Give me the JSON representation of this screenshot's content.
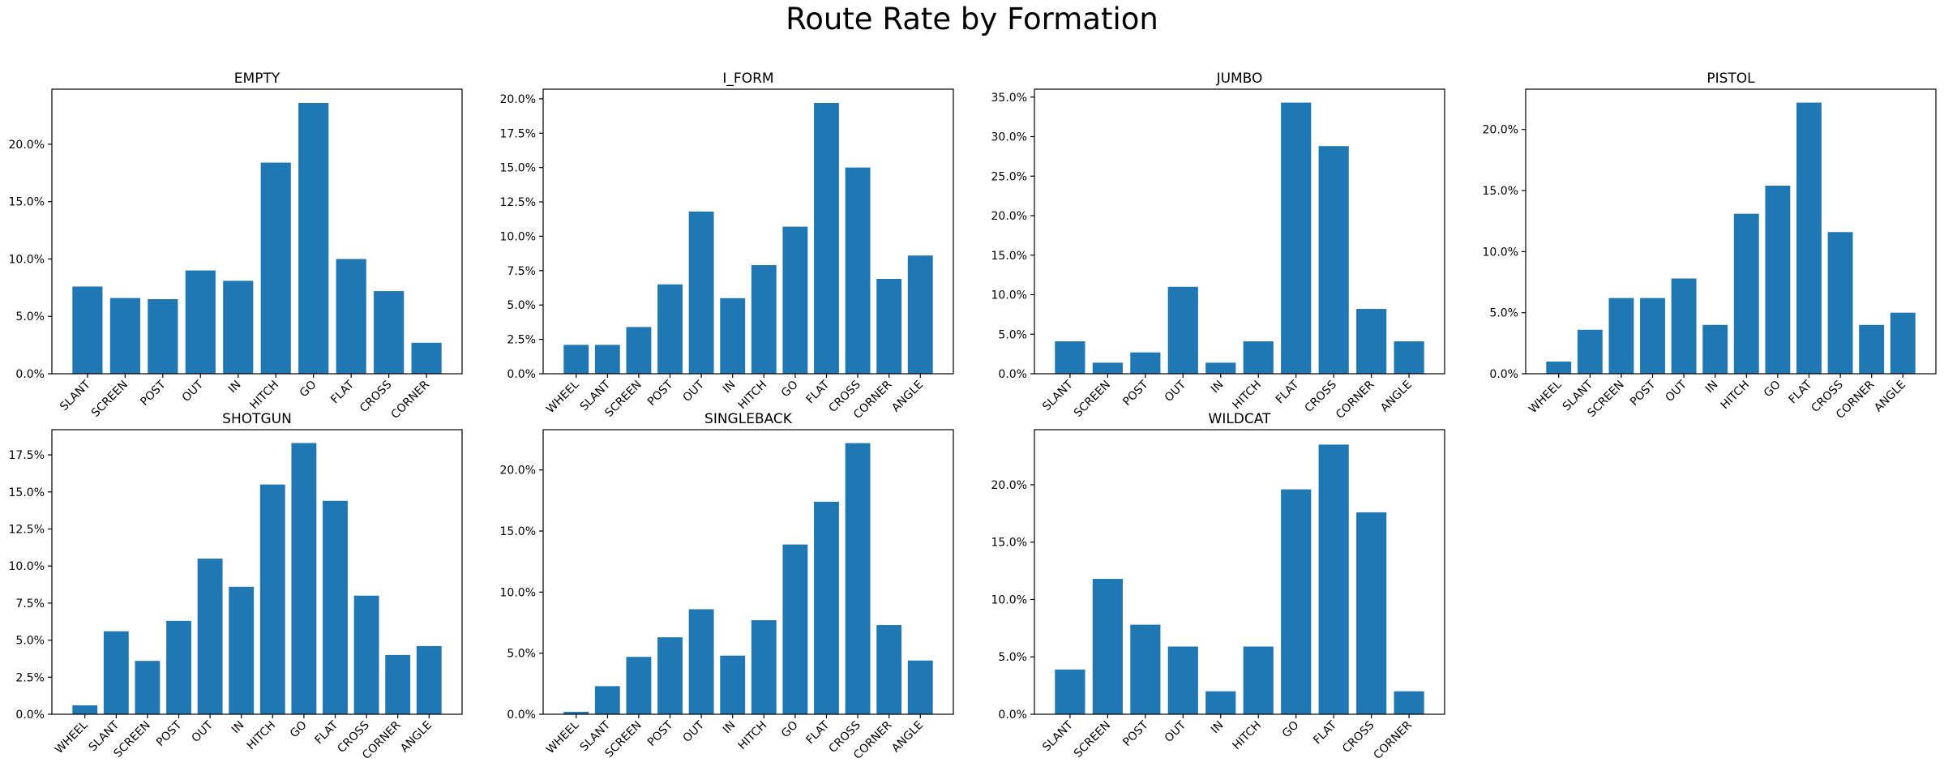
{
  "figure": {
    "title": "Route Rate by Formation"
  },
  "style": {
    "bar_color": "#1f77b4",
    "axis_color": "#000000",
    "background": "#ffffff"
  },
  "chart_data": [
    {
      "type": "bar",
      "title": "EMPTY",
      "ylim": [
        0,
        0.248
      ],
      "yticks": [
        0,
        0.05,
        0.1,
        0.15,
        0.2
      ],
      "ytick_labels": [
        "0.0%",
        "5.0%",
        "10.0%",
        "15.0%",
        "20.0%"
      ],
      "categories": [
        "SLANT",
        "SCREEN",
        "POST",
        "OUT",
        "IN",
        "HITCH",
        "GO",
        "FLAT",
        "CROSS",
        "CORNER"
      ],
      "values": [
        0.076,
        0.066,
        0.065,
        0.09,
        0.081,
        0.184,
        0.236,
        0.1,
        0.072,
        0.027
      ]
    },
    {
      "type": "bar",
      "title": "I_FORM",
      "ylim": [
        0,
        0.207
      ],
      "yticks": [
        0,
        0.025,
        0.05,
        0.075,
        0.1,
        0.125,
        0.15,
        0.175,
        0.2
      ],
      "ytick_labels": [
        "0.0%",
        "2.5%",
        "5.0%",
        "7.5%",
        "10.0%",
        "12.5%",
        "15.0%",
        "17.5%",
        "20.0%"
      ],
      "categories": [
        "WHEEL",
        "SLANT",
        "SCREEN",
        "POST",
        "OUT",
        "IN",
        "HITCH",
        "GO",
        "FLAT",
        "CROSS",
        "CORNER",
        "ANGLE"
      ],
      "values": [
        0.021,
        0.021,
        0.034,
        0.065,
        0.118,
        0.055,
        0.079,
        0.107,
        0.197,
        0.15,
        0.069,
        0.086
      ]
    },
    {
      "type": "bar",
      "title": "JUMBO",
      "ylim": [
        0,
        0.36
      ],
      "yticks": [
        0,
        0.05,
        0.1,
        0.15,
        0.2,
        0.25,
        0.3,
        0.35
      ],
      "ytick_labels": [
        "0.0%",
        "5.0%",
        "10.0%",
        "15.0%",
        "20.0%",
        "25.0%",
        "30.0%",
        "35.0%"
      ],
      "categories": [
        "SLANT",
        "SCREEN",
        "POST",
        "OUT",
        "IN",
        "HITCH",
        "FLAT",
        "CROSS",
        "CORNER",
        "ANGLE"
      ],
      "values": [
        0.041,
        0.014,
        0.027,
        0.11,
        0.014,
        0.041,
        0.343,
        0.288,
        0.082,
        0.041
      ]
    },
    {
      "type": "bar",
      "title": "PISTOL",
      "ylim": [
        0,
        0.233
      ],
      "yticks": [
        0,
        0.05,
        0.1,
        0.15,
        0.2
      ],
      "ytick_labels": [
        "0.0%",
        "5.0%",
        "10.0%",
        "15.0%",
        "20.0%"
      ],
      "categories": [
        "WHEEL",
        "SLANT",
        "SCREEN",
        "POST",
        "OUT",
        "IN",
        "HITCH",
        "GO",
        "FLAT",
        "CROSS",
        "CORNER",
        "ANGLE"
      ],
      "values": [
        0.01,
        0.036,
        0.062,
        0.062,
        0.078,
        0.04,
        0.131,
        0.154,
        0.222,
        0.116,
        0.04,
        0.05
      ]
    },
    {
      "type": "bar",
      "title": "SHOTGUN",
      "ylim": [
        0,
        0.192
      ],
      "yticks": [
        0,
        0.025,
        0.05,
        0.075,
        0.1,
        0.125,
        0.15,
        0.175
      ],
      "ytick_labels": [
        "0.0%",
        "2.5%",
        "5.0%",
        "7.5%",
        "10.0%",
        "12.5%",
        "15.0%",
        "17.5%"
      ],
      "categories": [
        "WHEEL",
        "SLANT",
        "SCREEN",
        "POST",
        "OUT",
        "IN",
        "HITCH",
        "GO",
        "FLAT",
        "CROSS",
        "CORNER",
        "ANGLE"
      ],
      "values": [
        0.006,
        0.056,
        0.036,
        0.063,
        0.105,
        0.086,
        0.155,
        0.183,
        0.144,
        0.08,
        0.04,
        0.046
      ]
    },
    {
      "type": "bar",
      "title": "SINGLEBACK",
      "ylim": [
        0,
        0.233
      ],
      "yticks": [
        0,
        0.05,
        0.1,
        0.15,
        0.2
      ],
      "ytick_labels": [
        "0.0%",
        "5.0%",
        "10.0%",
        "15.0%",
        "20.0%"
      ],
      "categories": [
        "WHEEL",
        "SLANT",
        "SCREEN",
        "POST",
        "OUT",
        "IN",
        "HITCH",
        "GO",
        "FLAT",
        "CROSS",
        "CORNER",
        "ANGLE"
      ],
      "values": [
        0.002,
        0.023,
        0.047,
        0.063,
        0.086,
        0.048,
        0.077,
        0.139,
        0.174,
        0.222,
        0.073,
        0.044
      ]
    },
    {
      "type": "bar",
      "title": "WILDCAT",
      "ylim": [
        0,
        0.248
      ],
      "yticks": [
        0,
        0.05,
        0.1,
        0.15,
        0.2
      ],
      "ytick_labels": [
        "0.0%",
        "5.0%",
        "10.0%",
        "15.0%",
        "20.0%"
      ],
      "categories": [
        "SLANT",
        "SCREEN",
        "POST",
        "OUT",
        "IN",
        "HITCH",
        "GO",
        "FLAT",
        "CROSS",
        "CORNER"
      ],
      "values": [
        0.039,
        0.118,
        0.078,
        0.059,
        0.02,
        0.059,
        0.196,
        0.235,
        0.176,
        0.02
      ]
    }
  ]
}
